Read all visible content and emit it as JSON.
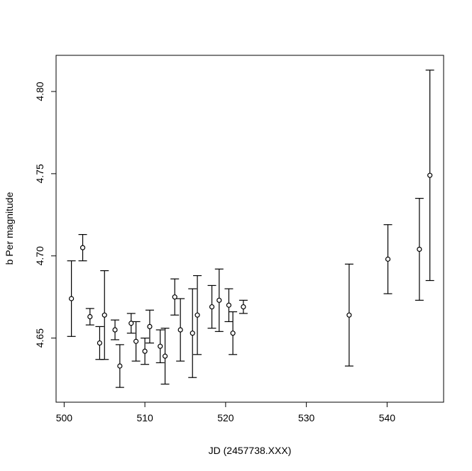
{
  "chart_data": {
    "type": "scatter",
    "title": "",
    "xlabel": "JD (2457738.XXX)",
    "ylabel": "b Per magnitude",
    "xlim": [
      499,
      547
    ],
    "ylim": [
      4.611,
      4.822
    ],
    "xticks": [
      500,
      510,
      520,
      530,
      540
    ],
    "yticks": [
      4.65,
      4.7,
      4.75,
      4.8
    ],
    "xtick_labels": [
      "500",
      "510",
      "520",
      "530",
      "540"
    ],
    "ytick_labels": [
      "4.65",
      "4.70",
      "4.75",
      "4.80"
    ],
    "grid": false,
    "legend": "none",
    "marker": "open-circle",
    "error_bars": true,
    "points": [
      {
        "x": 500.9,
        "y": 4.674,
        "lo": 4.651,
        "hi": 4.697
      },
      {
        "x": 502.3,
        "y": 4.705,
        "lo": 4.697,
        "hi": 4.713
      },
      {
        "x": 503.2,
        "y": 4.663,
        "lo": 4.658,
        "hi": 4.668
      },
      {
        "x": 504.4,
        "y": 4.647,
        "lo": 4.637,
        "hi": 4.657
      },
      {
        "x": 505.0,
        "y": 4.664,
        "lo": 4.637,
        "hi": 4.691
      },
      {
        "x": 506.3,
        "y": 4.655,
        "lo": 4.649,
        "hi": 4.661
      },
      {
        "x": 506.9,
        "y": 4.633,
        "lo": 4.62,
        "hi": 4.646
      },
      {
        "x": 508.3,
        "y": 4.659,
        "lo": 4.653,
        "hi": 4.665
      },
      {
        "x": 508.9,
        "y": 4.648,
        "lo": 4.636,
        "hi": 4.66
      },
      {
        "x": 510.0,
        "y": 4.642,
        "lo": 4.634,
        "hi": 4.65
      },
      {
        "x": 510.6,
        "y": 4.657,
        "lo": 4.647,
        "hi": 4.667
      },
      {
        "x": 511.9,
        "y": 4.645,
        "lo": 4.635,
        "hi": 4.655
      },
      {
        "x": 512.5,
        "y": 4.639,
        "lo": 4.622,
        "hi": 4.656
      },
      {
        "x": 513.7,
        "y": 4.675,
        "lo": 4.664,
        "hi": 4.686
      },
      {
        "x": 514.4,
        "y": 4.655,
        "lo": 4.636,
        "hi": 4.674
      },
      {
        "x": 515.9,
        "y": 4.653,
        "lo": 4.626,
        "hi": 4.68
      },
      {
        "x": 516.5,
        "y": 4.664,
        "lo": 4.64,
        "hi": 4.688
      },
      {
        "x": 518.3,
        "y": 4.669,
        "lo": 4.656,
        "hi": 4.682
      },
      {
        "x": 519.2,
        "y": 4.673,
        "lo": 4.654,
        "hi": 4.692
      },
      {
        "x": 520.4,
        "y": 4.67,
        "lo": 4.66,
        "hi": 4.68
      },
      {
        "x": 520.9,
        "y": 4.653,
        "lo": 4.64,
        "hi": 4.666
      },
      {
        "x": 522.2,
        "y": 4.669,
        "lo": 4.665,
        "hi": 4.673
      },
      {
        "x": 535.3,
        "y": 4.664,
        "lo": 4.633,
        "hi": 4.695
      },
      {
        "x": 540.1,
        "y": 4.698,
        "lo": 4.677,
        "hi": 4.719
      },
      {
        "x": 544.0,
        "y": 4.704,
        "lo": 4.673,
        "hi": 4.735
      },
      {
        "x": 545.3,
        "y": 4.749,
        "lo": 4.685,
        "hi": 4.813
      }
    ]
  }
}
